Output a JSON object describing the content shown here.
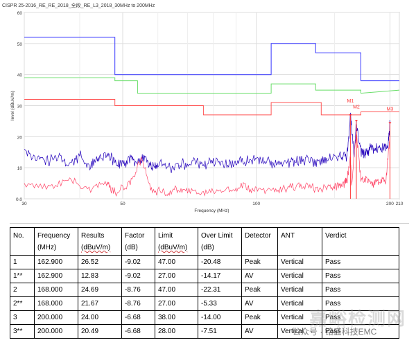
{
  "chart_data": {
    "type": "line",
    "title": "CISPR 25-2016_RE_RE_2018_全段_RE_L3_2018_30MHz to 200MHz",
    "xlabel": "Frequency (MHz)",
    "ylabel": "level (dBuV/m)",
    "x_scale": "log",
    "xlim": [
      30,
      210
    ],
    "ylim": [
      0,
      60
    ],
    "x_ticks": [
      "30",
      "50",
      "100",
      "200",
      "210"
    ],
    "x_tick_values": [
      30,
      50,
      100,
      200,
      210
    ],
    "y_ticks": [
      "0.0",
      "10",
      "20",
      "30",
      "40",
      "50",
      "60"
    ],
    "y_tick_values": [
      0,
      10,
      20,
      30,
      40,
      50,
      60
    ],
    "grid": true,
    "colors": {
      "peak_limit": "#3333ff",
      "qp_limit": "#66dd66",
      "av_limit": "#ff5555",
      "peak_trace": "#2200bb",
      "av_trace": "#ff4466",
      "markers": "#ff3333"
    },
    "series": [
      {
        "key": "peak_limit",
        "x": [
          30,
          48,
          48,
          68,
          68,
          108,
          108,
          136,
          136,
          172,
          172,
          210
        ],
        "y": [
          52,
          52,
          40,
          40,
          40,
          40,
          50,
          50,
          47,
          47,
          38,
          38
        ]
      },
      {
        "key": "qp_limit",
        "x": [
          30,
          48,
          48,
          54,
          54,
          108,
          108,
          136,
          136,
          172,
          172,
          210
        ],
        "y": [
          39,
          39,
          38,
          38,
          34,
          34,
          37,
          37,
          35,
          35,
          34,
          35
        ]
      },
      {
        "key": "av_limit",
        "x": [
          30,
          48,
          48,
          76,
          76,
          108,
          108,
          140,
          140,
          172,
          172,
          210
        ],
        "y": [
          32,
          32,
          30,
          30,
          27,
          27,
          31,
          31,
          27,
          27,
          28,
          28
        ]
      },
      {
        "key": "peak_trace",
        "x": [
          30,
          32,
          34,
          36,
          38,
          40,
          42,
          44,
          46,
          48,
          50,
          52,
          54,
          56,
          58,
          60,
          64,
          68,
          72,
          76,
          80,
          85,
          90,
          95,
          100,
          106,
          112,
          118,
          124,
          130,
          136,
          142,
          148,
          154,
          160,
          162.9,
          166,
          168,
          172,
          176,
          180,
          186,
          192,
          198,
          200
        ],
        "y": [
          16,
          13,
          12,
          14,
          11,
          14,
          10,
          13,
          15,
          12,
          11,
          13,
          12,
          14,
          10,
          11,
          10,
          11,
          12,
          11,
          12,
          11,
          12,
          12,
          13,
          12,
          11,
          12,
          12,
          13,
          12,
          13,
          13,
          14,
          14,
          26.52,
          14,
          24.69,
          15,
          15,
          16,
          16,
          16,
          17,
          24.0
        ]
      },
      {
        "key": "av_trace",
        "x": [
          30,
          34,
          38,
          42,
          46,
          48,
          52,
          55,
          58,
          62,
          66,
          70,
          76,
          82,
          88,
          94,
          100,
          108,
          116,
          124,
          132,
          140,
          148,
          154,
          158,
          160,
          162.9,
          164,
          168,
          172,
          178,
          184,
          190,
          196,
          200
        ],
        "y": [
          5,
          4,
          6,
          3,
          5,
          2,
          5,
          13,
          3,
          2,
          3,
          2,
          2,
          3,
          3,
          4,
          3,
          3,
          3,
          4,
          4,
          3,
          4,
          4,
          5,
          6,
          12.83,
          5,
          21.67,
          6,
          6,
          5,
          6,
          6,
          20.49
        ]
      }
    ],
    "markers": [
      {
        "label": "M1",
        "x": 162.9,
        "y": 26.52
      },
      {
        "label": "M2",
        "x": 168.0,
        "y": 24.69
      },
      {
        "label": "M3",
        "x": 200.0,
        "y": 24.0
      }
    ]
  },
  "table": {
    "headers": [
      [
        "No.",
        ""
      ],
      [
        "Frequency",
        "(MHz)"
      ],
      [
        "Results",
        "(dBuV/m)"
      ],
      [
        "Factor",
        "(dB)"
      ],
      [
        "Limit",
        "(dBuV/m)"
      ],
      [
        "Over Limit",
        "(dB)"
      ],
      [
        "Detector",
        ""
      ],
      [
        "ANT",
        ""
      ],
      [
        "Verdict",
        ""
      ]
    ],
    "rows": [
      [
        "1",
        "162.900",
        "26.52",
        "-9.02",
        "47.00",
        "-20.48",
        "Peak",
        "Vertical",
        "Pass"
      ],
      [
        "1**",
        "162.900",
        "12.83",
        "-9.02",
        "27.00",
        "-14.17",
        "AV",
        "Vertical",
        "Pass"
      ],
      [
        "2",
        "168.000",
        "24.69",
        "-8.76",
        "47.00",
        "-22.31",
        "Peak",
        "Vertical",
        "Pass"
      ],
      [
        "2**",
        "168.000",
        "21.67",
        "-8.76",
        "27.00",
        "-5.33",
        "AV",
        "Vertical",
        "Pass"
      ],
      [
        "3",
        "200.000",
        "24.00",
        "-6.68",
        "38.00",
        "-14.00",
        "Peak",
        "Vertical",
        "Pass"
      ],
      [
        "3**",
        "200.000",
        "20.49",
        "-6.68",
        "28.00",
        "-7.51",
        "AV",
        "Vertical",
        "Pass"
      ]
    ]
  },
  "watermark": {
    "text": "嘉峪检测网",
    "subtext": "公众号 · 铭盛科技EMC"
  }
}
